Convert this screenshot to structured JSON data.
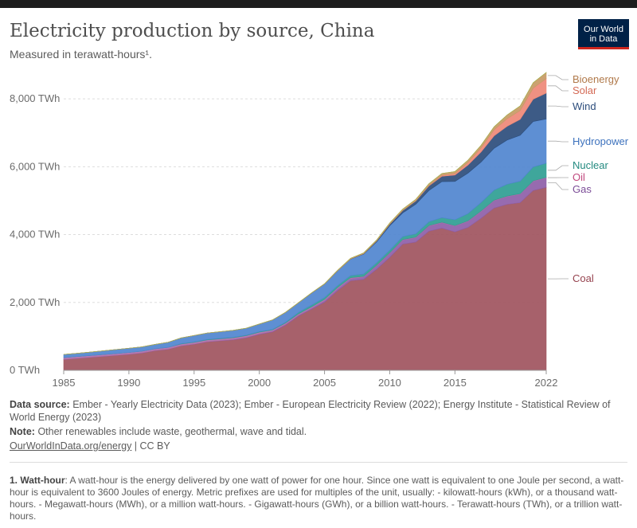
{
  "header": {
    "title": "Electricity production by source, China",
    "subtitle": "Measured in terawatt-hours¹.",
    "logo_line1": "Our World",
    "logo_line2": "in Data"
  },
  "colors": {
    "Coal": "#a0545e",
    "Gas": "#8e5ea8",
    "Oil": "#b06fa8",
    "Nuclear": "#2f9e92",
    "Hydropower": "#5085cf",
    "Wind": "#2c4d7c",
    "Solar": "#ee8877",
    "Bioenergy": "#c79a65",
    "Other renewables": "#9fb44a"
  },
  "chart_data": {
    "type": "area",
    "stacked": true,
    "title": "Electricity production by source, China",
    "ylabel": "",
    "ylim": [
      0,
      8800
    ],
    "x": [
      1985,
      1986,
      1987,
      1988,
      1989,
      1990,
      1991,
      1992,
      1993,
      1994,
      1995,
      1996,
      1997,
      1998,
      1999,
      2000,
      2001,
      2002,
      2003,
      2004,
      2005,
      2006,
      2007,
      2008,
      2009,
      2010,
      2011,
      2012,
      2013,
      2014,
      2015,
      2016,
      2017,
      2018,
      2019,
      2020,
      2021,
      2022
    ],
    "y_ticks": [
      0,
      2000,
      4000,
      6000,
      8000
    ],
    "y_tick_labels": [
      "0 TWh",
      "2,000 TWh",
      "4,000 TWh",
      "6,000 TWh",
      "8,000 TWh"
    ],
    "x_ticks": [
      1985,
      1990,
      1995,
      2000,
      2005,
      2010,
      2015,
      2022
    ],
    "x_tick_labels": [
      "1985",
      "1990",
      "1995",
      "2000",
      "2005",
      "2010",
      "2015",
      "2022"
    ],
    "series": [
      {
        "name": "Coal",
        "values": [
          320,
          350,
          380,
          410,
          440,
          470,
          510,
          580,
          620,
          720,
          770,
          840,
          870,
          900,
          960,
          1060,
          1130,
          1330,
          1600,
          1800,
          2010,
          2350,
          2640,
          2680,
          2980,
          3330,
          3720,
          3780,
          4100,
          4190,
          4080,
          4210,
          4480,
          4780,
          4890,
          4940,
          5300,
          5390
        ]
      },
      {
        "name": "Gas",
        "values": [
          5,
          5,
          5,
          5,
          5,
          5,
          5,
          5,
          5,
          5,
          5,
          6,
          8,
          10,
          12,
          14,
          18,
          20,
          22,
          30,
          40,
          50,
          60,
          70,
          100,
          120,
          120,
          130,
          150,
          160,
          170,
          180,
          200,
          220,
          230,
          250,
          270,
          280
        ]
      },
      {
        "name": "Oil",
        "values": [
          50,
          50,
          50,
          50,
          50,
          50,
          50,
          50,
          50,
          50,
          50,
          50,
          50,
          50,
          50,
          50,
          40,
          40,
          40,
          40,
          40,
          40,
          30,
          20,
          20,
          15,
          15,
          15,
          15,
          15,
          15,
          15,
          15,
          15,
          15,
          15,
          15,
          15
        ]
      },
      {
        "name": "Nuclear",
        "values": [
          0,
          0,
          0,
          0,
          0,
          0,
          0,
          0,
          0,
          13,
          13,
          14,
          14,
          14,
          15,
          17,
          17,
          25,
          43,
          50,
          53,
          55,
          62,
          68,
          70,
          74,
          86,
          97,
          112,
          132,
          171,
          213,
          248,
          295,
          348,
          366,
          407,
          418
        ]
      },
      {
        "name": "Hydropower",
        "values": [
          92,
          94,
          100,
          109,
          118,
          126,
          125,
          130,
          151,
          167,
          187,
          188,
          195,
          204,
          204,
          222,
          277,
          288,
          283,
          354,
          397,
          435,
          485,
          585,
          616,
          722,
          699,
          872,
          920,
          1064,
          1130,
          1193,
          1194,
          1232,
          1302,
          1355,
          1340,
          1303
        ]
      },
      {
        "name": "Wind",
        "values": [
          0,
          0,
          0,
          0,
          0,
          0,
          0,
          0,
          0,
          0,
          0,
          0,
          0,
          0,
          0,
          0,
          0,
          1,
          1,
          1,
          2,
          4,
          6,
          13,
          28,
          45,
          70,
          96,
          134,
          157,
          186,
          237,
          295,
          366,
          405,
          467,
          656,
          763
        ]
      },
      {
        "name": "Solar",
        "values": [
          0,
          0,
          0,
          0,
          0,
          0,
          0,
          0,
          0,
          0,
          0,
          0,
          0,
          0,
          0,
          0,
          0,
          0,
          0,
          0,
          0,
          0,
          0,
          0,
          0,
          1,
          3,
          6,
          16,
          29,
          45,
          75,
          118,
          177,
          224,
          261,
          327,
          427
        ]
      },
      {
        "name": "Bioenergy",
        "values": [
          0,
          0,
          0,
          0,
          0,
          0,
          0,
          0,
          0,
          0,
          2,
          2,
          2,
          2,
          2,
          2,
          3,
          5,
          6,
          8,
          10,
          15,
          20,
          25,
          30,
          36,
          40,
          45,
          50,
          55,
          60,
          70,
          80,
          90,
          110,
          136,
          160,
          180
        ]
      },
      {
        "name": "Other renewables",
        "values": [
          0,
          0,
          0,
          0,
          0,
          0,
          0,
          0,
          0,
          0,
          0,
          0,
          0,
          0,
          0,
          0,
          0,
          0,
          0,
          0,
          0,
          0,
          0,
          0,
          0,
          0,
          0,
          0,
          0,
          0,
          0,
          0,
          0,
          0,
          0,
          0,
          1,
          1
        ]
      }
    ],
    "legend": {
      "placement": "right",
      "entries": [
        "Bioenergy",
        "Solar",
        "Wind",
        "Hydropower",
        "Nuclear",
        "Oil",
        "Gas",
        "Coal"
      ]
    },
    "grid": "horizontal-dashed"
  },
  "footer": {
    "data_source_label": "Data source:",
    "data_source_text": "Ember - Yearly Electricity Data (2023); Ember - European Electricity Review (2022); Energy Institute - Statistical Review of World Energy (2023)",
    "note_label": "Note:",
    "note_text": "Other renewables include waste, geothermal, wave and tidal.",
    "link_text": "OurWorldInData.org/energy",
    "license_text": " | CC BY",
    "footnote_label": "1. Watt-hour",
    "footnote_text": ": A watt-hour is the energy delivered by one watt of power for one hour. Since one watt is equivalent to one Joule per second, a watt-hour is equivalent to 3600 Joules of energy. Metric prefixes are used for multiples of the unit, usually: - kilowatt-hours (kWh), or a thousand watt-hours. - Megawatt-hours (MWh), or a million watt-hours. - Gigawatt-hours (GWh), or a billion watt-hours. - Terawatt-hours (TWh), or a trillion watt-hours."
  }
}
